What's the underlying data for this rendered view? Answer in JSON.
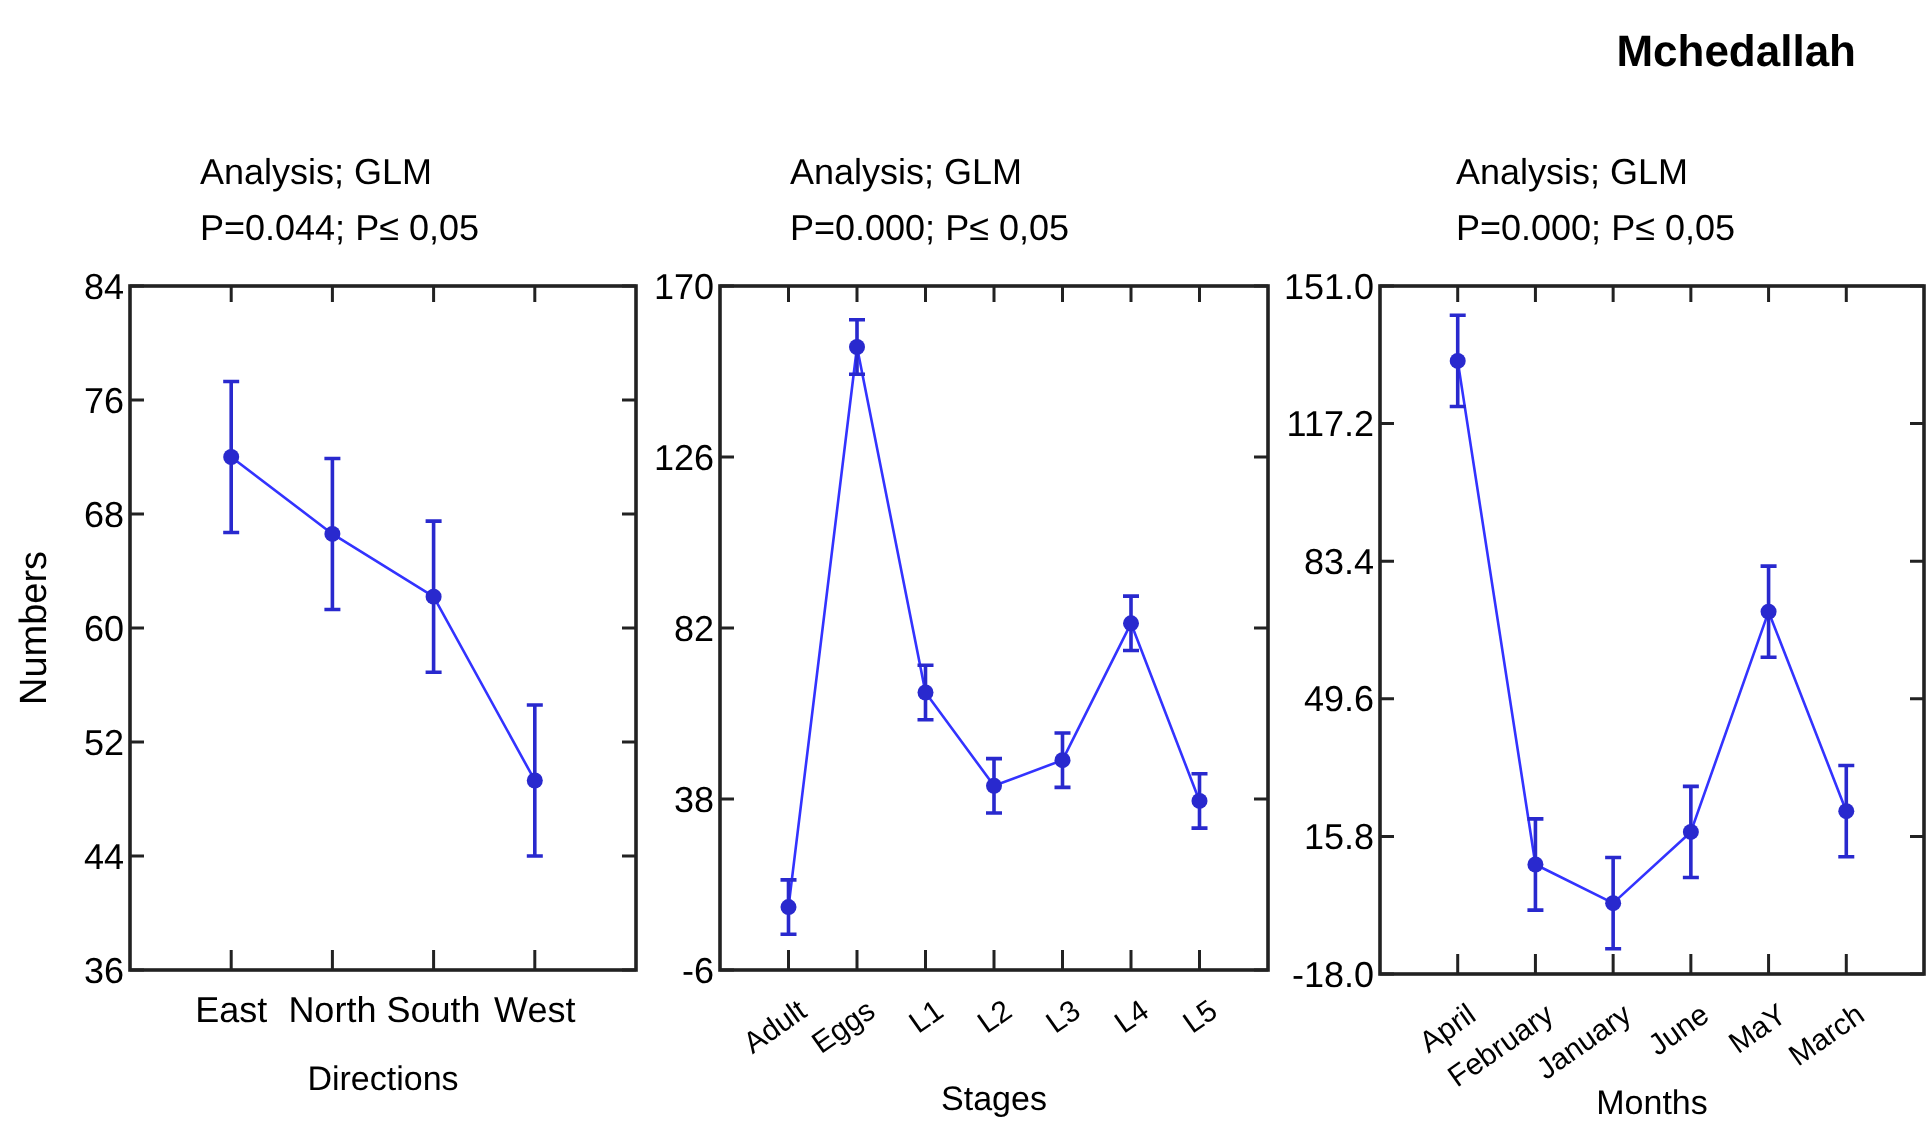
{
  "chart_data": [
    {
      "type": "line",
      "title": "Analysis; GLM",
      "subtitle": "P=0.044; P≤ 0,05",
      "xlabel": "Directions",
      "ylabel": "Numbers",
      "categories": [
        "East",
        "North",
        "South",
        "West"
      ],
      "series": [
        {
          "color": "#3333ff",
          "values": [
            72,
            66.6,
            62.2,
            49.3
          ],
          "errors": [
            5.3,
            5.3,
            5.3,
            5.3
          ]
        }
      ],
      "ylim": [
        36,
        84
      ],
      "yticks": [
        36,
        44,
        52,
        60,
        68,
        76,
        84
      ],
      "marker": "circle"
    },
    {
      "type": "line",
      "title": "Analysis; GLM",
      "subtitle": "P=0.000; P≤ 0,05",
      "xlabel": "Stages",
      "categories": [
        "Adult",
        "Eggs",
        "L1",
        "L2",
        "L3",
        "L4",
        "L5"
      ],
      "series": [
        {
          "color": "#3333ff",
          "values": [
            10.2,
            154.3,
            65.4,
            41.4,
            48,
            83.2,
            37.5
          ],
          "errors": [
            7,
            7,
            7,
            7,
            7,
            7,
            7
          ]
        }
      ],
      "ylim": [
        -6,
        170
      ],
      "yticks": [
        -6,
        38,
        82,
        126,
        170
      ],
      "marker": "circle"
    },
    {
      "type": "line",
      "title": "Analysis; GLM",
      "subtitle": "P=0.000; P≤ 0,05",
      "xlabel": "Months",
      "annotations": [
        "Mchedallah"
      ],
      "categories": [
        "April",
        "February",
        "January",
        "June",
        "MaY",
        "March"
      ],
      "series": [
        {
          "color": "#3333ff",
          "values": [
            132.6,
            8.9,
            -0.6,
            16.9,
            71,
            22
          ],
          "errors": [
            11.2,
            11.2,
            11.2,
            11.2,
            11.2,
            11.2
          ]
        }
      ],
      "ylim": [
        -18,
        151
      ],
      "yticks": [
        {
          "value": -18,
          "label": "-18.0"
        },
        {
          "value": 15.8,
          "label": "15.8"
        },
        {
          "value": 49.6,
          "label": "49.6"
        },
        {
          "value": 83.4,
          "label": "83.4"
        },
        {
          "value": 117.2,
          "label": "117.2"
        },
        {
          "value": 151,
          "label": "151.0"
        }
      ],
      "marker": "circle"
    }
  ]
}
